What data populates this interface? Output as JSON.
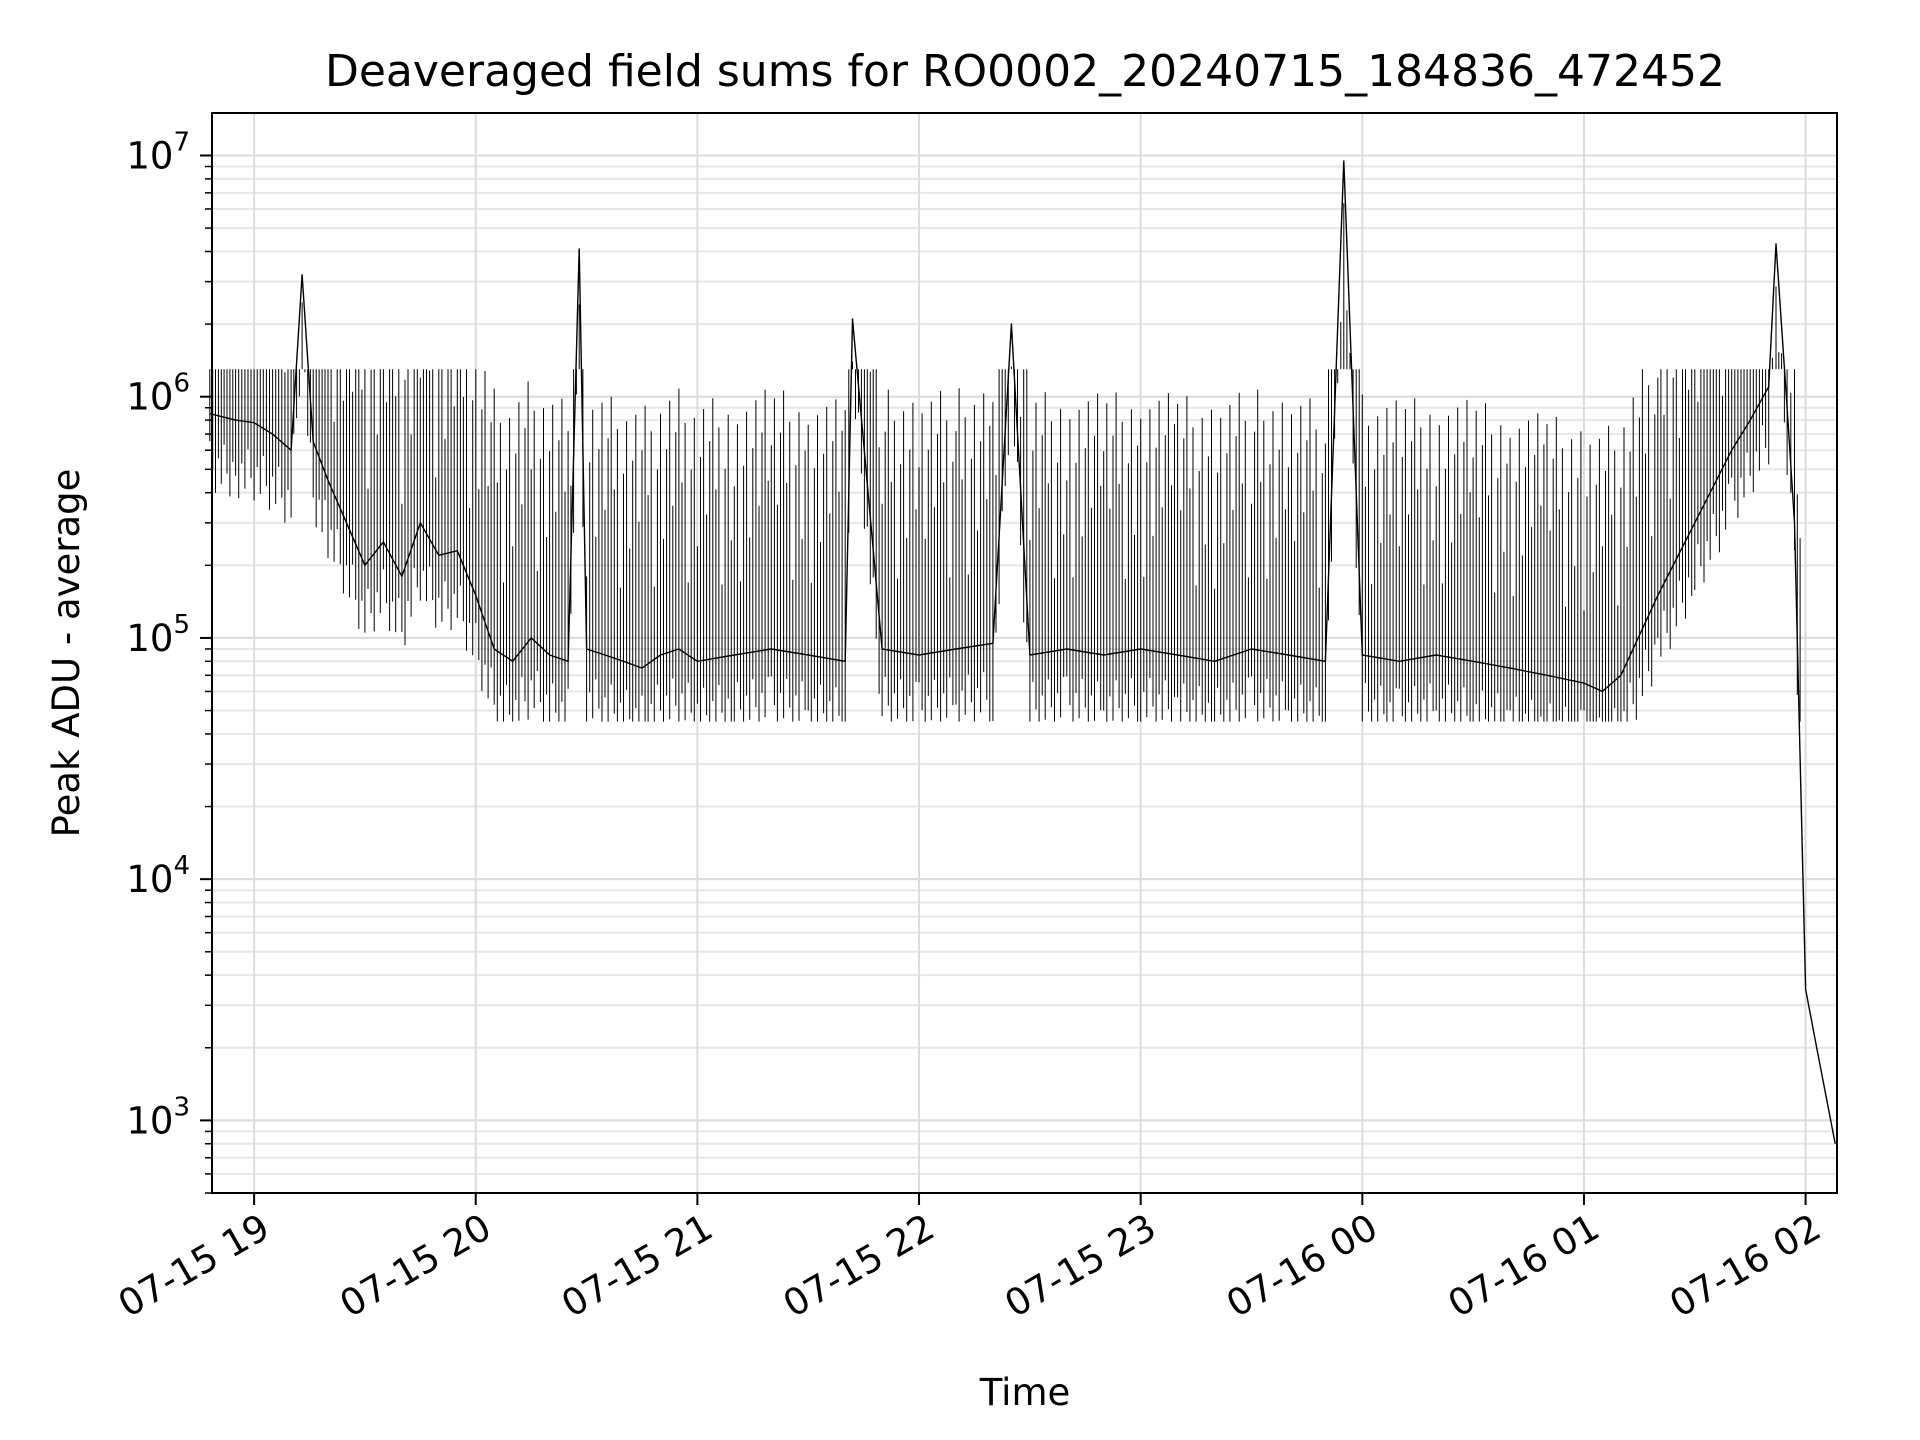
{
  "chart_data": {
    "type": "line",
    "title": "Deaveraged field sums for RO0002_20240715_184836_472452",
    "xlabel": "Time",
    "ylabel": "Peak ADU - average",
    "yscale": "log",
    "ylim": [
      500,
      15000000
    ],
    "xlim": [
      "07-15 18:48:36",
      "07-16 02:08:30"
    ],
    "grid": true,
    "x_ticks": [
      {
        "value": "07-15 19:00",
        "label": "07-15 19"
      },
      {
        "value": "07-15 20:00",
        "label": "07-15 20"
      },
      {
        "value": "07-15 21:00",
        "label": "07-15 21"
      },
      {
        "value": "07-15 22:00",
        "label": "07-15 22"
      },
      {
        "value": "07-15 23:00",
        "label": "07-15 23"
      },
      {
        "value": "07-16 00:00",
        "label": "07-16 00"
      },
      {
        "value": "07-16 01:00",
        "label": "07-16 01"
      },
      {
        "value": "07-16 02:00",
        "label": "07-16 02"
      }
    ],
    "y_ticks": [
      {
        "value": 1000,
        "base": "10",
        "exp": "3"
      },
      {
        "value": 10000,
        "base": "10",
        "exp": "4"
      },
      {
        "value": 100000,
        "base": "10",
        "exp": "5"
      },
      {
        "value": 1000000,
        "base": "10",
        "exp": "6"
      },
      {
        "value": 10000000,
        "base": "10",
        "exp": "7"
      }
    ],
    "series": [
      {
        "color": "#000000",
        "x": [
          "07-15 18:48",
          "07-15 18:55",
          "07-15 19:00",
          "07-15 19:05",
          "07-15 19:10",
          "07-15 19:13",
          "07-15 19:16",
          "07-15 19:20",
          "07-15 19:25",
          "07-15 19:30",
          "07-15 19:35",
          "07-15 19:40",
          "07-15 19:45",
          "07-15 19:50",
          "07-15 19:55",
          "07-15 20:00",
          "07-15 20:05",
          "07-15 20:10",
          "07-15 20:15",
          "07-15 20:20",
          "07-15 20:25",
          "07-15 20:28",
          "07-15 20:30",
          "07-15 20:35",
          "07-15 20:40",
          "07-15 20:45",
          "07-15 20:50",
          "07-15 20:55",
          "07-15 21:00",
          "07-15 21:10",
          "07-15 21:20",
          "07-15 21:30",
          "07-15 21:40",
          "07-15 21:42",
          "07-15 21:50",
          "07-15 22:00",
          "07-15 22:10",
          "07-15 22:20",
          "07-15 22:25",
          "07-15 22:30",
          "07-15 22:40",
          "07-15 22:50",
          "07-15 23:00",
          "07-15 23:10",
          "07-15 23:20",
          "07-15 23:30",
          "07-15 23:40",
          "07-15 23:50",
          "07-15 23:55",
          "07-16 00:00",
          "07-16 00:10",
          "07-16 00:20",
          "07-16 00:30",
          "07-16 00:40",
          "07-16 00:50",
          "07-16 01:00",
          "07-16 01:05",
          "07-16 01:10",
          "07-16 01:20",
          "07-16 01:30",
          "07-16 01:40",
          "07-16 01:45",
          "07-16 01:50",
          "07-16 01:52",
          "07-16 01:55",
          "07-16 01:57",
          "07-16 02:00",
          "07-16 02:03",
          "07-16 02:08"
        ],
        "y": [
          850000,
          800000,
          780000,
          700000,
          600000,
          3200000,
          650000,
          450000,
          300000,
          200000,
          250000,
          180000,
          300000,
          220000,
          230000,
          150000,
          90000,
          80000,
          100000,
          85000,
          80000,
          4100000,
          90000,
          85000,
          80000,
          75000,
          85000,
          90000,
          80000,
          85000,
          90000,
          85000,
          80000,
          2100000,
          90000,
          85000,
          90000,
          95000,
          2000000,
          85000,
          90000,
          85000,
          90000,
          85000,
          80000,
          90000,
          85000,
          80000,
          9500000,
          85000,
          80000,
          85000,
          80000,
          75000,
          70000,
          65000,
          60000,
          70000,
          150000,
          300000,
          600000,
          800000,
          1100000,
          4300000,
          900000,
          300000,
          3500,
          2000,
          800
        ]
      }
    ]
  }
}
